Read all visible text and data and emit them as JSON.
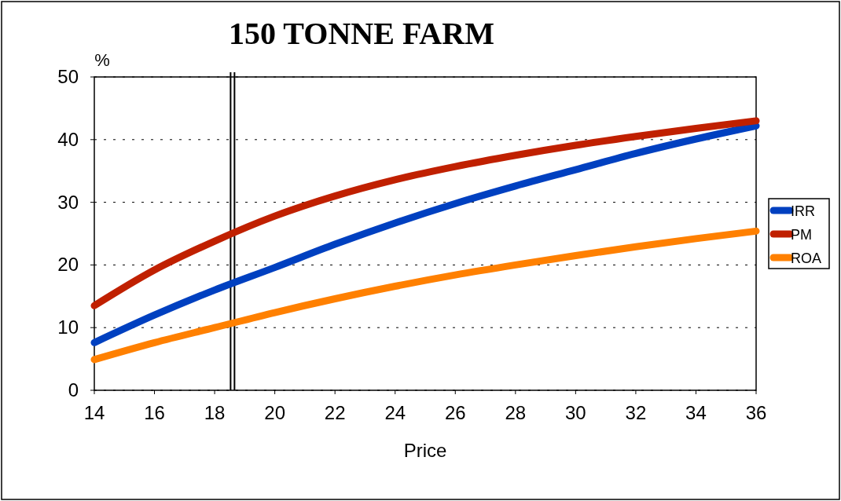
{
  "chart_data": {
    "type": "line",
    "title": "150 TONNE FARM",
    "xlabel": "Price",
    "ylabel": "%",
    "x": [
      14,
      16,
      18,
      20,
      22,
      24,
      26,
      28,
      30,
      32,
      34,
      36
    ],
    "series": [
      {
        "name": "IRR",
        "color": "#0040c0",
        "values": [
          7.6,
          12,
          16,
          19.6,
          23.3,
          26.7,
          29.8,
          32.6,
          35.2,
          37.8,
          40.1,
          42.2
        ]
      },
      {
        "name": "PM",
        "color": "#c02000",
        "values": [
          13.5,
          19.2,
          23.8,
          27.8,
          31,
          33.6,
          35.7,
          37.5,
          39.1,
          40.5,
          41.8,
          43
        ]
      },
      {
        "name": "ROA",
        "color": "#ff8000",
        "values": [
          4.9,
          7.6,
          10,
          12.4,
          14.6,
          16.6,
          18.4,
          20,
          21.5,
          22.9,
          24.2,
          25.4
        ]
      }
    ],
    "xlim": [
      14,
      36
    ],
    "xticks": [
      14,
      16,
      18,
      20,
      22,
      24,
      26,
      28,
      30,
      32,
      34,
      36
    ],
    "ylim": [
      0,
      50
    ],
    "yticks": [
      0,
      10,
      20,
      30,
      40,
      50
    ],
    "grid": "y",
    "legend": "right",
    "line_style": "solid",
    "marker": "none",
    "ref_lines": [
      {
        "axis": "x",
        "value": 18.53,
        "label": null,
        "color": "#000000",
        "line_style": "solid"
      },
      {
        "axis": "x",
        "value": 18.66,
        "label": null,
        "color": "#000000",
        "line_style": "solid"
      }
    ]
  }
}
